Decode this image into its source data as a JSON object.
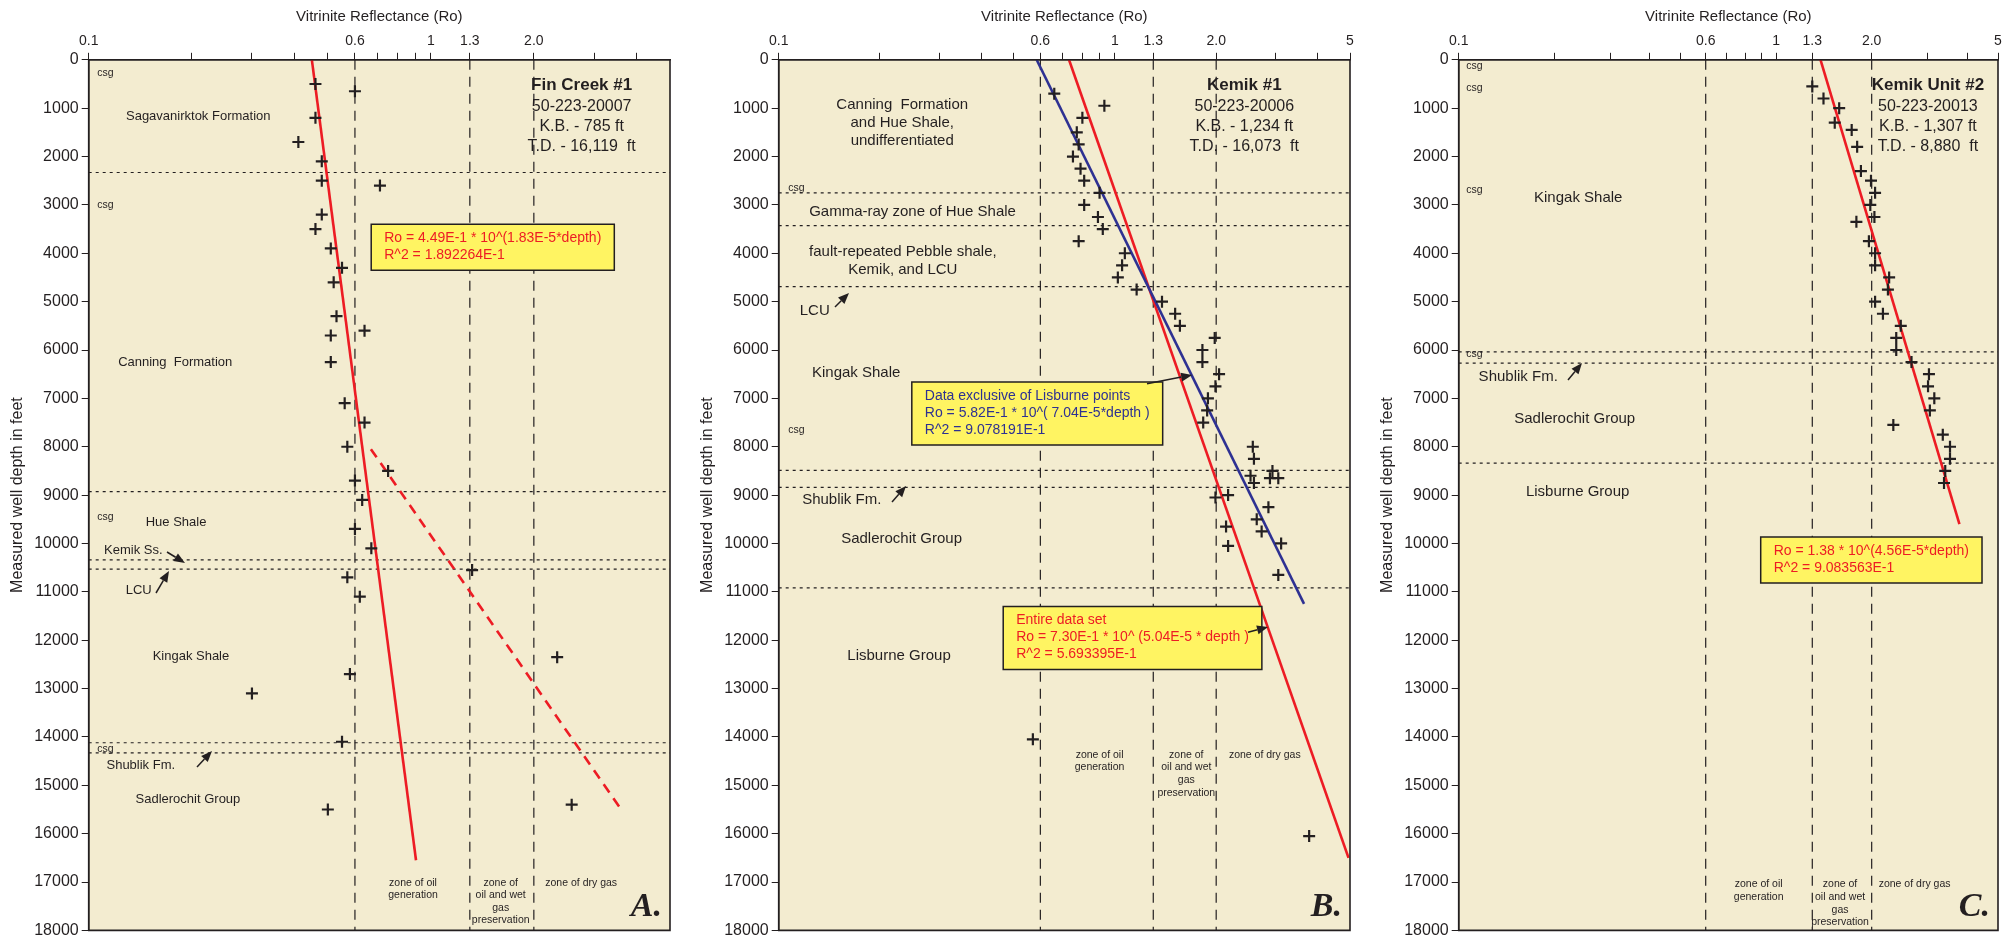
{
  "chart_data": [
    {
      "type": "scatter",
      "title": "Fin Creek #1",
      "subtitle": "50-223-20007\nK.B. - 785 ft\nT.D. - 16,119  ft",
      "xlabel": "Vitrinite Reflectance (Ro)",
      "ylabel": "Measured well depth in feet",
      "log": "x",
      "marker": "cross",
      "xlim": [
        0.1,
        5
      ],
      "xticks": [
        0.1,
        {
          "value": 0.2,
          "label": null
        },
        {
          "value": 0.3,
          "label": null
        },
        {
          "value": 0.4,
          "label": null
        },
        {
          "value": 0.5,
          "label": null
        },
        0.6,
        {
          "value": 0.7,
          "label": null
        },
        {
          "value": 0.8,
          "label": null
        },
        {
          "value": 0.9,
          "label": null
        },
        1,
        1.3,
        {
          "value": 2,
          "label": "2.0"
        },
        {
          "value": 3,
          "label": null
        },
        {
          "value": 4,
          "label": null
        }
      ],
      "ylim": [
        18000,
        0
      ],
      "yticks": [
        0,
        1000,
        2000,
        3000,
        4000,
        5000,
        6000,
        7000,
        8000,
        9000,
        10000,
        11000,
        12000,
        13000,
        14000,
        15000,
        16000,
        17000,
        18000
      ],
      "series": [
        {
          "type": "scatter",
          "color": "#231f20",
          "x": [
            0.46,
            0.6,
            0.46,
            0.41,
            0.48,
            0.48,
            0.71,
            0.48,
            0.46,
            0.51,
            0.55,
            0.52,
            0.53,
            0.64,
            0.51,
            0.51,
            0.56,
            0.64,
            0.57,
            0.75,
            0.6,
            0.63,
            0.6,
            0.67,
            1.32,
            0.57,
            0.62,
            2.34,
            0.58,
            0.3,
            0.55,
            0.5,
            2.58
          ],
          "values": [
            500,
            650,
            1200,
            1700,
            2100,
            2500,
            2600,
            3200,
            3500,
            3900,
            4300,
            4600,
            5300,
            5600,
            5700,
            6250,
            7100,
            7500,
            8000,
            8500,
            8700,
            9100,
            9700,
            10100,
            10550,
            10700,
            11100,
            12350,
            12700,
            13100,
            14100,
            15500,
            15400
          ]
        },
        {
          "type": "line",
          "name": "Ro = 4.49E-1 * 10^(1.83E-5*depth)\nR^2 = 1.892264E-1",
          "color": "#ed1c24",
          "marker": "none",
          "line_style": "solid",
          "x": [
            0.449,
            0.905
          ],
          "values": [
            0,
            16550
          ]
        },
        {
          "type": "line",
          "color": "#ed1c24",
          "marker": "none",
          "line_style": "dashed",
          "x": [
            0.668,
            3.56
          ],
          "values": [
            8050,
            15450
          ]
        }
      ],
      "ref_lines": [
        {
          "axis": "x",
          "value": 0.6,
          "line_style": "dashed"
        },
        {
          "axis": "x",
          "value": 1.3,
          "line_style": "dashed"
        },
        {
          "axis": "x",
          "value": 2,
          "line_style": "dashed"
        },
        {
          "axis": "y",
          "value": 2330,
          "line_style": "dotted"
        },
        {
          "axis": "y",
          "value": 8930,
          "line_style": "dotted"
        },
        {
          "axis": "y",
          "value": 10340,
          "line_style": "dotted"
        },
        {
          "axis": "y",
          "value": 10530,
          "line_style": "dotted"
        },
        {
          "axis": "y",
          "value": 14120,
          "line_style": "dotted"
        },
        {
          "axis": "y",
          "value": 14330,
          "line_style": "dotted"
        }
      ],
      "annotations": [
        "Sagavanirktok Formation",
        "Canning  Formation",
        "Hue Shale",
        "Kemik Ss.",
        "LCU",
        "Kingak Shale",
        "Shublik Fm.",
        "Sadlerochit Group",
        "csg",
        "csg",
        "csg",
        "csg",
        "zone of oil\ngeneration",
        "zone of\noil and wet\ngas\npreservation",
        "zone of dry gas",
        "A."
      ]
    },
    {
      "type": "scatter",
      "title": "Kemik #1",
      "subtitle": "50-223-20006\nK.B. - 1,234 ft\nT.D. - 16,073  ft",
      "xlabel": "Vitrinite Reflectance (Ro)",
      "ylabel": "Measured well depth in feet",
      "log": "x",
      "marker": "cross",
      "xlim": [
        0.1,
        5
      ],
      "xticks": [
        0.1,
        {
          "value": 0.2,
          "label": null
        },
        {
          "value": 0.3,
          "label": null
        },
        {
          "value": 0.4,
          "label": null
        },
        {
          "value": 0.5,
          "label": null
        },
        0.6,
        {
          "value": 0.7,
          "label": null
        },
        {
          "value": 0.8,
          "label": null
        },
        {
          "value": 0.9,
          "label": null
        },
        1,
        1.3,
        {
          "value": 2,
          "label": "2.0"
        },
        {
          "value": 3,
          "label": null
        },
        {
          "value": 4,
          "label": null
        },
        5
      ],
      "ylim": [
        18000,
        0
      ],
      "yticks": [
        0,
        1000,
        2000,
        3000,
        4000,
        5000,
        6000,
        7000,
        8000,
        9000,
        10000,
        11000,
        12000,
        13000,
        14000,
        15000,
        16000,
        17000,
        18000
      ],
      "series": [
        {
          "type": "scatter",
          "color": "#231f20",
          "x": [
            0.66,
            0.93,
            0.8,
            0.77,
            0.78,
            0.75,
            0.79,
            0.81,
            0.9,
            0.81,
            0.89,
            0.92,
            0.78,
            1.07,
            1.05,
            1.02,
            1.16,
            1.38,
            1.51,
            1.56,
            1.98,
            1.82,
            1.82,
            2.04,
            1.99,
            1.89,
            1.88,
            1.83,
            2.57,
            2.59,
            2.94,
            2.53,
            2.89,
            2.59,
            3.06,
            1.99,
            2.17,
            2.86,
            2.64,
            2.14,
            2.73,
            3.12,
            2.17,
            3.06,
            0.57,
            3.78
          ],
          "values": [
            700,
            950,
            1200,
            1500,
            1750,
            2000,
            2250,
            2500,
            2750,
            3000,
            3250,
            3500,
            3750,
            4000,
            4250,
            4500,
            4750,
            5000,
            5250,
            5500,
            5750,
            6000,
            6250,
            6500,
            6750,
            7000,
            7250,
            7500,
            8000,
            8250,
            8500,
            8600,
            8650,
            8750,
            8650,
            9050,
            9000,
            9250,
            9500,
            9650,
            9750,
            10000,
            10050,
            10650,
            14050,
            16050
          ]
        },
        {
          "type": "line",
          "name": "Data exclusive of Lisburne points\nRo = 5.82E-1 * 10^( 7.04E-5*depth )\nR^2 = 9.078191E-1",
          "color": "#2e3192",
          "marker": "none",
          "line_style": "solid",
          "x": [
            0.585,
            3.65
          ],
          "values": [
            0,
            11250
          ]
        },
        {
          "type": "line",
          "name": "Entire data set\nRo = 7.30E-1 * 10^ (5.04E-5 * depth )\nR^2 = 5.693395E-1",
          "color": "#ed1c24",
          "marker": "none",
          "line_style": "solid",
          "x": [
            0.73,
            4.95
          ],
          "values": [
            0,
            16500
          ]
        }
      ],
      "ref_lines": [
        {
          "axis": "x",
          "value": 0.6,
          "line_style": "dashed"
        },
        {
          "axis": "x",
          "value": 1.3,
          "line_style": "dashed"
        },
        {
          "axis": "x",
          "value": 2,
          "line_style": "dashed"
        },
        {
          "axis": "y",
          "value": 2750,
          "line_style": "dotted"
        },
        {
          "axis": "y",
          "value": 3430,
          "line_style": "dotted"
        },
        {
          "axis": "y",
          "value": 4690,
          "line_style": "dotted"
        },
        {
          "axis": "y",
          "value": 8490,
          "line_style": "dotted"
        },
        {
          "axis": "y",
          "value": 8840,
          "line_style": "dotted"
        },
        {
          "axis": "y",
          "value": 10920,
          "line_style": "dotted"
        }
      ],
      "annotations": [
        "Canning  Formation\nand Hue Shale,\nundifferentiated",
        "Gamma-ray zone of Hue Shale",
        "fault-repeated Pebble shale,\nKemik, and LCU",
        "LCU",
        "Kingak Shale",
        "Shublik Fm.",
        "Sadlerochit Group",
        "Lisburne Group",
        "csg",
        "csg",
        "zone of oil\ngeneration",
        "zone of\noil and wet\ngas\npreservation",
        "zone of dry gas",
        "B."
      ]
    },
    {
      "type": "scatter",
      "title": "Kemik Unit #2",
      "subtitle": "50-223-20013\nK.B. - 1,307 ft\nT.D. - 8,880  ft",
      "xlabel": "Vitrinite Reflectance (Ro)",
      "ylabel": "Measured well depth in feet",
      "log": "x",
      "marker": "cross",
      "xlim": [
        0.1,
        5
      ],
      "xticks": [
        0.1,
        {
          "value": 0.2,
          "label": null
        },
        {
          "value": 0.3,
          "label": null
        },
        {
          "value": 0.4,
          "label": null
        },
        {
          "value": 0.5,
          "label": null
        },
        0.6,
        {
          "value": 0.7,
          "label": null
        },
        {
          "value": 0.8,
          "label": null
        },
        {
          "value": 0.9,
          "label": null
        },
        1,
        1.3,
        {
          "value": 2,
          "label": "2.0"
        },
        {
          "value": 3,
          "label": null
        },
        {
          "value": 4,
          "label": null
        },
        5
      ],
      "ylim": [
        18000,
        0
      ],
      "yticks": [
        0,
        1000,
        2000,
        3000,
        4000,
        5000,
        6000,
        7000,
        8000,
        9000,
        10000,
        11000,
        12000,
        13000,
        14000,
        15000,
        16000,
        17000,
        18000
      ],
      "series": [
        {
          "type": "scatter",
          "color": "#231f20",
          "x": [
            1.3,
            1.41,
            1.58,
            1.53,
            1.73,
            1.8,
            1.85,
            1.99,
            2.05,
            1.98,
            2.04,
            1.79,
            1.96,
            2.05,
            2.05,
            2.27,
            2.25,
            2.05,
            2.17,
            2.47,
            2.39,
            2.39,
            2.67,
            3.03,
            3.01,
            3.15,
            3.05,
            2.34,
            3.35,
            3.53,
            3.53,
            3.41,
            3.38
          ],
          "values": [
            550,
            800,
            1000,
            1300,
            1450,
            1800,
            2300,
            2500,
            2750,
            3000,
            3250,
            3350,
            3750,
            4000,
            4250,
            4500,
            4750,
            5000,
            5250,
            5500,
            5750,
            6000,
            6250,
            6500,
            6750,
            7000,
            7250,
            7550,
            7750,
            8000,
            8250,
            8500,
            8750
          ]
        },
        {
          "type": "line",
          "name": "Ro = 1.38 * 10^(4.56E-5*depth)\nR^2 = 9.083563E-1",
          "color": "#ed1c24",
          "marker": "none",
          "line_style": "solid",
          "x": [
            1.38,
            3.78
          ],
          "values": [
            0,
            9600
          ]
        }
      ],
      "ref_lines": [
        {
          "axis": "x",
          "value": 0.6,
          "line_style": "dashed"
        },
        {
          "axis": "x",
          "value": 1.3,
          "line_style": "dashed"
        },
        {
          "axis": "x",
          "value": 2,
          "line_style": "dashed"
        },
        {
          "axis": "y",
          "value": 6040,
          "line_style": "dotted"
        },
        {
          "axis": "y",
          "value": 6270,
          "line_style": "dotted"
        },
        {
          "axis": "y",
          "value": 8340,
          "line_style": "dotted"
        }
      ],
      "annotations": [
        "Kingak Shale",
        "Shublik Fm.",
        "Sadlerochit Group",
        "Lisburne Group",
        "csg",
        "csg",
        "csg",
        "csg",
        "zone of oil\ngeneration",
        "zone of\noil and wet\ngas\npreservation",
        "zone of dry gas",
        "C."
      ]
    }
  ]
}
